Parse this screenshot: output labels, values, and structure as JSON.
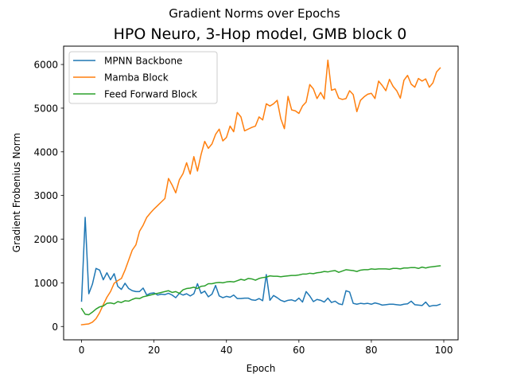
{
  "chart_data": {
    "type": "line",
    "suptitle": "Gradient Norms over Epochs",
    "title": "HPO Neuro, 3-Hop model, GMB block 0",
    "xlabel": "Epoch",
    "ylabel": "Gradient Frobenius Norm",
    "xlim": [
      -4.95,
      103.95
    ],
    "ylim": [
      -305,
      6420
    ],
    "xticks": [
      0,
      20,
      40,
      60,
      80,
      100
    ],
    "yticks": [
      0,
      1000,
      2000,
      3000,
      4000,
      5000,
      6000
    ],
    "legend_loc": "upper left",
    "grid": false,
    "x": [
      0,
      1,
      2,
      3,
      4,
      5,
      6,
      7,
      8,
      9,
      10,
      11,
      12,
      13,
      14,
      15,
      16,
      17,
      18,
      19,
      20,
      21,
      22,
      23,
      24,
      25,
      26,
      27,
      28,
      29,
      30,
      31,
      32,
      33,
      34,
      35,
      36,
      37,
      38,
      39,
      40,
      41,
      42,
      43,
      44,
      45,
      46,
      47,
      48,
      49,
      50,
      51,
      52,
      53,
      54,
      55,
      56,
      57,
      58,
      59,
      60,
      61,
      62,
      63,
      64,
      65,
      66,
      67,
      68,
      69,
      70,
      71,
      72,
      73,
      74,
      75,
      76,
      77,
      78,
      79,
      80,
      81,
      82,
      83,
      84,
      85,
      86,
      87,
      88,
      89,
      90,
      91,
      92,
      93,
      94,
      95,
      96,
      97,
      98,
      99
    ],
    "series": [
      {
        "name": "MPNN Backbone",
        "color": "#1f77b4",
        "values": [
          580,
          2500,
          750,
          970,
          1330,
          1290,
          1070,
          1230,
          1070,
          1210,
          920,
          850,
          990,
          870,
          820,
          800,
          800,
          880,
          720,
          760,
          770,
          720,
          740,
          730,
          760,
          720,
          660,
          760,
          720,
          750,
          700,
          750,
          980,
          760,
          810,
          680,
          740,
          940,
          700,
          660,
          690,
          670,
          720,
          640,
          640,
          650,
          650,
          610,
          600,
          640,
          590,
          1190,
          600,
          710,
          660,
          600,
          570,
          600,
          610,
          580,
          650,
          560,
          800,
          700,
          570,
          620,
          600,
          560,
          650,
          550,
          580,
          520,
          500,
          820,
          790,
          530,
          510,
          530,
          520,
          530,
          510,
          540,
          520,
          490,
          500,
          510,
          510,
          500,
          490,
          510,
          520,
          580,
          500,
          490,
          480,
          560,
          460,
          480,
          480,
          510
        ]
      },
      {
        "name": "Mamba Block",
        "color": "#ff7f0e",
        "values": [
          40,
          50,
          60,
          100,
          180,
          320,
          500,
          670,
          800,
          990,
          1050,
          1100,
          1290,
          1520,
          1750,
          1870,
          2180,
          2320,
          2500,
          2600,
          2690,
          2770,
          2850,
          2930,
          3390,
          3240,
          3060,
          3360,
          3500,
          3750,
          3490,
          3890,
          3560,
          3940,
          4240,
          4080,
          4180,
          4400,
          4520,
          4250,
          4330,
          4590,
          4460,
          4900,
          4800,
          4480,
          4520,
          4560,
          4590,
          4800,
          4730,
          5100,
          5050,
          5100,
          5180,
          4760,
          4530,
          5270,
          4960,
          4940,
          4880,
          5050,
          5140,
          5540,
          5440,
          5220,
          5360,
          5210,
          6100,
          5410,
          5440,
          5230,
          5200,
          5220,
          5400,
          5310,
          4920,
          5180,
          5260,
          5320,
          5340,
          5220,
          5620,
          5520,
          5400,
          5660,
          5500,
          5400,
          5230,
          5640,
          5750,
          5550,
          5480,
          5680,
          5620,
          5670,
          5480,
          5580,
          5830,
          5920
        ]
      },
      {
        "name": "Feed Forward Block",
        "color": "#2ca02c",
        "values": [
          410,
          280,
          270,
          330,
          400,
          450,
          470,
          530,
          540,
          520,
          570,
          550,
          590,
          580,
          620,
          650,
          640,
          680,
          700,
          720,
          740,
          760,
          780,
          800,
          820,
          780,
          800,
          760,
          840,
          870,
          880,
          900,
          870,
          920,
          930,
          980,
          980,
          1000,
          1010,
          1000,
          1020,
          1030,
          1020,
          1050,
          1080,
          1060,
          1100,
          1090,
          1060,
          1100,
          1120,
          1130,
          1160,
          1150,
          1150,
          1140,
          1150,
          1160,
          1170,
          1170,
          1180,
          1200,
          1200,
          1220,
          1210,
          1230,
          1240,
          1260,
          1250,
          1270,
          1280,
          1240,
          1270,
          1300,
          1290,
          1280,
          1260,
          1290,
          1300,
          1300,
          1320,
          1310,
          1320,
          1320,
          1320,
          1310,
          1330,
          1330,
          1320,
          1340,
          1340,
          1350,
          1350,
          1330,
          1360,
          1340,
          1360,
          1370,
          1380,
          1390
        ]
      }
    ]
  }
}
